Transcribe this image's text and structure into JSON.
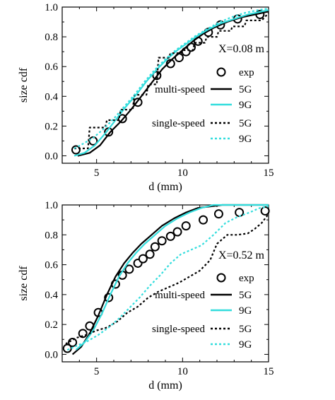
{
  "chart_data": [
    {
      "type": "line",
      "annotation": "X=0.08 m",
      "xlabel": "d (mm)",
      "ylabel": "size cdf",
      "xlim": [
        3,
        15
      ],
      "ylim": [
        -0.05,
        1.0
      ],
      "xticks": [
        5,
        10,
        15
      ],
      "yticks": [
        0.0,
        0.2,
        0.4,
        0.6,
        0.8,
        1.0
      ],
      "ytick_labels": [
        "0.0",
        "0.2",
        "0.4",
        "0.6",
        "0.8",
        "1.0"
      ],
      "legend": {
        "exp_label": "exp",
        "group1_label": "multi-speed",
        "group2_label": "single-speed",
        "entries": [
          "5G",
          "9G",
          "5G",
          "9G"
        ]
      },
      "series": [
        {
          "name": "exp",
          "kind": "markers",
          "color": "#000000",
          "x": [
            3.8,
            4.8,
            5.7,
            6.5,
            7.4,
            8.5,
            9.3,
            9.8,
            10.2,
            10.5,
            10.9,
            11.5,
            12.2,
            13.2,
            14.5
          ],
          "y": [
            0.04,
            0.1,
            0.16,
            0.25,
            0.36,
            0.54,
            0.62,
            0.66,
            0.7,
            0.73,
            0.77,
            0.83,
            0.88,
            0.92,
            0.95
          ]
        },
        {
          "name": "5G",
          "group": "multi-speed",
          "kind": "line",
          "color": "#000000",
          "dash": "solid",
          "x": [
            3.9,
            4.6,
            5.2,
            5.8,
            6.4,
            7.0,
            7.6,
            8.2,
            8.8,
            9.4,
            10.0,
            10.6,
            11.2,
            11.8,
            12.6,
            13.4,
            14.2,
            15.0
          ],
          "y": [
            0.0,
            0.02,
            0.07,
            0.16,
            0.23,
            0.31,
            0.4,
            0.49,
            0.58,
            0.65,
            0.71,
            0.77,
            0.82,
            0.86,
            0.9,
            0.93,
            0.95,
            0.97
          ]
        },
        {
          "name": "9G",
          "group": "multi-speed",
          "kind": "line",
          "color": "#33dddd",
          "dash": "solid",
          "x": [
            3.7,
            4.3,
            4.9,
            5.5,
            6.1,
            6.7,
            7.3,
            7.9,
            8.5,
            9.1,
            9.7,
            10.3,
            10.9,
            11.5,
            12.2,
            13.0,
            13.8,
            14.6,
            15.0
          ],
          "y": [
            0.0,
            0.02,
            0.07,
            0.15,
            0.24,
            0.33,
            0.41,
            0.5,
            0.58,
            0.65,
            0.71,
            0.76,
            0.81,
            0.85,
            0.89,
            0.92,
            0.95,
            0.97,
            0.98
          ]
        },
        {
          "name": "5G",
          "group": "single-speed",
          "kind": "line",
          "color": "#000000",
          "dash": "dotted",
          "x": [
            3.7,
            4.5,
            4.6,
            5.5,
            5.6,
            6.3,
            6.4,
            7.1,
            7.2,
            7.9,
            8.0,
            8.5,
            8.6,
            9.2,
            9.3,
            9.9,
            10.0,
            10.6,
            10.7,
            11.3,
            11.4,
            12.0,
            12.1,
            12.8,
            12.9,
            13.6,
            13.7,
            14.6,
            15.0
          ],
          "y": [
            0.05,
            0.05,
            0.19,
            0.19,
            0.24,
            0.24,
            0.31,
            0.31,
            0.41,
            0.41,
            0.48,
            0.48,
            0.66,
            0.66,
            0.69,
            0.69,
            0.71,
            0.71,
            0.76,
            0.76,
            0.8,
            0.8,
            0.84,
            0.84,
            0.87,
            0.87,
            0.91,
            0.91,
            0.96
          ]
        },
        {
          "name": "9G",
          "group": "single-speed",
          "kind": "line",
          "color": "#33dddd",
          "dash": "dotted",
          "x": [
            3.7,
            4.2,
            4.8,
            5.4,
            6.0,
            6.6,
            7.2,
            7.8,
            8.4,
            9.0,
            9.6,
            10.2,
            10.8,
            11.4,
            12.0,
            12.8,
            13.6,
            14.4,
            15.0
          ],
          "y": [
            0.05,
            0.08,
            0.12,
            0.18,
            0.25,
            0.33,
            0.41,
            0.5,
            0.58,
            0.65,
            0.71,
            0.76,
            0.81,
            0.85,
            0.89,
            0.93,
            0.96,
            0.98,
            0.99
          ]
        }
      ]
    },
    {
      "type": "line",
      "annotation": "X=0.52 m",
      "xlabel": "d (mm)",
      "ylabel": "size cdf",
      "xlim": [
        3,
        15
      ],
      "ylim": [
        -0.05,
        1.0
      ],
      "xticks": [
        5,
        10,
        15
      ],
      "yticks": [
        0.0,
        0.2,
        0.4,
        0.6,
        0.8,
        1.0
      ],
      "ytick_labels": [
        "0.0",
        "0.2",
        "0.4",
        "0.6",
        "0.8",
        "1.0"
      ],
      "legend": {
        "exp_label": "exp",
        "group1_label": "multi-speed",
        "group2_label": "single-speed",
        "entries": [
          "5G",
          "9G",
          "5G",
          "9G"
        ]
      },
      "series": [
        {
          "name": "exp",
          "kind": "markers",
          "color": "#000000",
          "x": [
            3.3,
            3.6,
            4.2,
            4.6,
            5.1,
            5.7,
            6.1,
            6.5,
            6.9,
            7.4,
            7.7,
            8.1,
            8.4,
            8.8,
            9.3,
            9.7,
            10.2,
            11.2,
            12.1,
            13.3,
            14.8
          ],
          "y": [
            0.04,
            0.08,
            0.14,
            0.19,
            0.28,
            0.38,
            0.47,
            0.53,
            0.57,
            0.61,
            0.64,
            0.67,
            0.72,
            0.76,
            0.79,
            0.82,
            0.86,
            0.9,
            0.94,
            0.95,
            0.96
          ]
        },
        {
          "name": "5G",
          "group": "multi-speed",
          "kind": "line",
          "color": "#000000",
          "dash": "solid",
          "x": [
            3.6,
            4.1,
            4.6,
            5.1,
            5.6,
            6.1,
            6.6,
            7.1,
            7.6,
            8.2,
            8.8,
            9.5,
            10.2,
            10.9,
            11.6,
            12.3,
            15.0
          ],
          "y": [
            0.0,
            0.05,
            0.14,
            0.26,
            0.4,
            0.52,
            0.61,
            0.68,
            0.74,
            0.8,
            0.86,
            0.91,
            0.95,
            0.98,
            0.99,
            1.0,
            1.0
          ]
        },
        {
          "name": "9G",
          "group": "multi-speed",
          "kind": "line",
          "color": "#33dddd",
          "dash": "solid",
          "x": [
            3.8,
            4.3,
            4.8,
            5.3,
            5.8,
            6.3,
            6.8,
            7.3,
            7.8,
            8.4,
            9.0,
            9.7,
            10.4,
            11.1,
            11.8,
            15.0
          ],
          "y": [
            0.03,
            0.08,
            0.16,
            0.27,
            0.4,
            0.52,
            0.61,
            0.68,
            0.74,
            0.8,
            0.86,
            0.91,
            0.95,
            0.98,
            1.0,
            1.0
          ]
        },
        {
          "name": "5G",
          "group": "single-speed",
          "kind": "line",
          "color": "#000000",
          "dash": "dotted",
          "x": [
            3.2,
            3.8,
            4.4,
            5.0,
            5.6,
            6.2,
            6.8,
            7.4,
            8.0,
            8.6,
            9.2,
            9.8,
            10.4,
            11.0,
            11.6,
            12.0,
            12.6,
            13.2,
            13.8,
            14.2,
            14.6,
            15.0
          ],
          "y": [
            0.07,
            0.11,
            0.13,
            0.16,
            0.18,
            0.22,
            0.28,
            0.32,
            0.38,
            0.42,
            0.45,
            0.48,
            0.52,
            0.56,
            0.63,
            0.74,
            0.8,
            0.8,
            0.81,
            0.84,
            0.88,
            0.94
          ]
        },
        {
          "name": "9G",
          "group": "single-speed",
          "kind": "line",
          "color": "#33dddd",
          "dash": "dotted",
          "x": [
            3.3,
            3.9,
            4.5,
            5.1,
            5.7,
            6.3,
            6.9,
            7.5,
            8.1,
            8.7,
            9.3,
            9.9,
            10.5,
            11.1,
            11.8,
            12.5,
            13.2,
            13.9,
            14.5,
            15.0
          ],
          "y": [
            0.03,
            0.06,
            0.09,
            0.13,
            0.18,
            0.24,
            0.31,
            0.38,
            0.46,
            0.53,
            0.61,
            0.67,
            0.7,
            0.73,
            0.8,
            0.88,
            0.92,
            0.95,
            0.98,
            0.99
          ]
        }
      ]
    }
  ]
}
